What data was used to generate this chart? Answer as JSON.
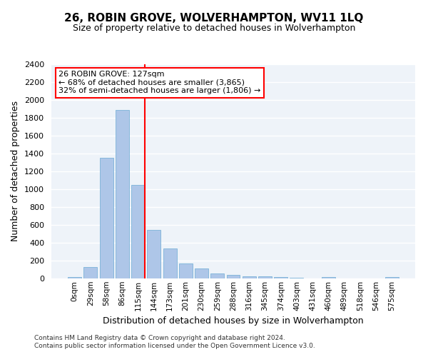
{
  "title": "26, ROBIN GROVE, WOLVERHAMPTON, WV11 1LQ",
  "subtitle": "Size of property relative to detached houses in Wolverhampton",
  "xlabel": "Distribution of detached houses by size in Wolverhampton",
  "ylabel": "Number of detached properties",
  "bar_labels": [
    "0sqm",
    "29sqm",
    "58sqm",
    "86sqm",
    "115sqm",
    "144sqm",
    "173sqm",
    "201sqm",
    "230sqm",
    "259sqm",
    "288sqm",
    "316sqm",
    "345sqm",
    "374sqm",
    "403sqm",
    "431sqm",
    "460sqm",
    "489sqm",
    "518sqm",
    "546sqm",
    "575sqm"
  ],
  "bar_values": [
    15,
    125,
    1350,
    1890,
    1045,
    545,
    335,
    165,
    110,
    60,
    40,
    28,
    22,
    18,
    5,
    0,
    18,
    0,
    0,
    0,
    15
  ],
  "bar_color": "#aec6e8",
  "bar_edgecolor": "#6aaad4",
  "subject_line_color": "red",
  "annotation_text": "26 ROBIN GROVE: 127sqm\n← 68% of detached houses are smaller (3,865)\n32% of semi-detached houses are larger (1,806) →",
  "annotation_box_color": "white",
  "annotation_box_edgecolor": "red",
  "ylim": [
    0,
    2400
  ],
  "yticks": [
    0,
    200,
    400,
    600,
    800,
    1000,
    1200,
    1400,
    1600,
    1800,
    2000,
    2200,
    2400
  ],
  "footnote1": "Contains HM Land Registry data © Crown copyright and database right 2024.",
  "footnote2": "Contains public sector information licensed under the Open Government Licence v3.0.",
  "bg_color": "#eef3f9",
  "grid_color": "white"
}
